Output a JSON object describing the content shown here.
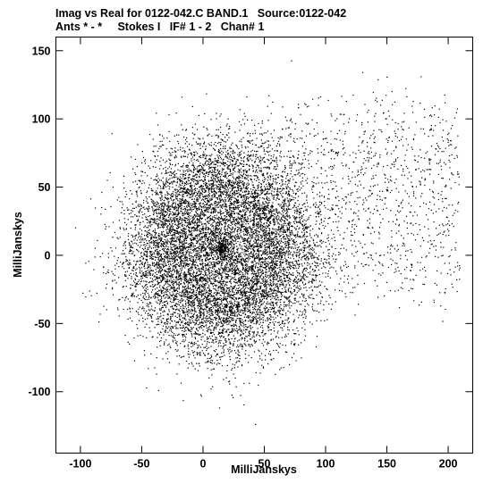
{
  "header": {
    "line1": "Imag vs Real for 0122-042.C BAND.1   Source:0122-042",
    "line2": "Ants * - *     Stokes I   IF# 1 - 2   Chan# 1"
  },
  "chart_data": {
    "type": "scatter",
    "title": "Imag vs Real for 0122-042.C BAND.1   Source:0122-042",
    "subtitle": "Ants * - *     Stokes I   IF# 1 - 2   Chan# 1",
    "xlabel": "MilliJanskys",
    "ylabel": "MilliJanskys",
    "xlim": [
      -120,
      220
    ],
    "ylim": [
      -145,
      160
    ],
    "xticks": [
      -100,
      -50,
      0,
      50,
      100,
      150,
      200
    ],
    "xtick_labels": [
      "-100",
      "-50",
      "0",
      "50",
      "100",
      "150",
      "200"
    ],
    "yticks": [
      -100,
      -50,
      0,
      50,
      100,
      150
    ],
    "ytick_labels": [
      "-100",
      "-50",
      "0",
      "50",
      "100",
      "150"
    ],
    "grid": false,
    "marker_color": "#000000",
    "series": [
      {
        "n_points": 12000,
        "distribution": "ring",
        "ring_center": [
          15,
          5
        ],
        "ring_radius": 48,
        "ring_radial_sd": 22,
        "inner_hole_center": [
          0,
          0
        ],
        "tail_direction": "upper-right",
        "x_range": [
          -115,
          210
        ],
        "y_range": [
          -140,
          160
        ]
      }
    ]
  }
}
